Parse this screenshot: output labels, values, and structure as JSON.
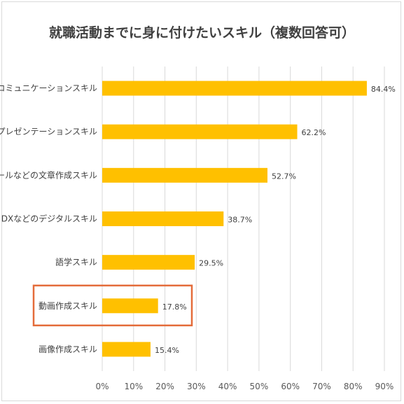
{
  "chart_data": {
    "type": "bar",
    "orientation": "horizontal",
    "title": "就職活動までに身に付けたいスキル（複数回答可）",
    "categories": [
      "コミュニケーションスキル",
      "プレゼンテーションスキル",
      "メールなどの文章作成スキル",
      "IT・DXなどのデジタルスキル",
      "語学スキル",
      "動画作成スキル",
      "画像作成スキル"
    ],
    "values": [
      84.4,
      62.2,
      52.7,
      38.7,
      29.5,
      17.8,
      15.4
    ],
    "value_labels": [
      "84.4%",
      "62.2%",
      "52.7%",
      "38.7%",
      "29.5%",
      "17.8%",
      "15.4%"
    ],
    "x_ticks": [
      "0%",
      "10%",
      "20%",
      "30%",
      "40%",
      "50%",
      "60%",
      "70%",
      "80%",
      "90%"
    ],
    "xlim": [
      0,
      90
    ],
    "grid": true,
    "highlighted_category": "動画作成スキル",
    "colors": {
      "bar": "#FFC000",
      "highlight_box": "#E46C3A",
      "grid": "#d9d9d9",
      "text": "#404040"
    }
  }
}
